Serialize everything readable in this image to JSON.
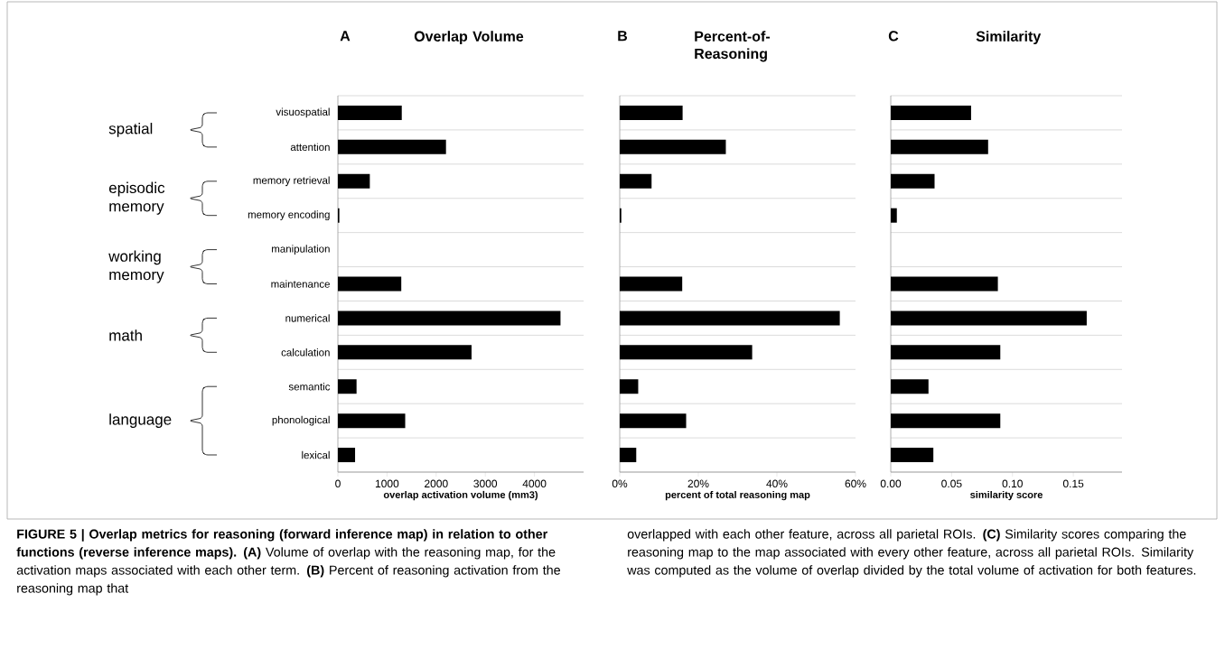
{
  "chart_data": [
    {
      "type": "bar",
      "orientation": "horizontal",
      "title": "Overlap Volume",
      "xlabel": "overlap activation volume (mm3)",
      "categories": [
        "visuospatial",
        "attention",
        "memory retrieval",
        "memory encoding",
        "manipulation",
        "maintenance",
        "numerical",
        "calculation",
        "semantic",
        "phonological",
        "lexical"
      ],
      "values": [
        1300,
        2200,
        650,
        30,
        0,
        1290,
        4530,
        2720,
        380,
        1370,
        350
      ],
      "color": "#000000",
      "xlim": [
        0,
        5000
      ],
      "xticks": [
        0,
        1000,
        2000,
        3000,
        4000
      ],
      "grid": "y",
      "annotations": [
        "A",
        "spatial",
        "episodic memory",
        "working memory",
        "math",
        "language",
        "**FIGURE 5 | Overlap metrics for reasoning (forward inference map) in relation to other functions (reverse inference maps). (A)** Volume of overlap with the reasoning map, for the activation maps associated with each other term. **(B)** Percent of reasoning activation from the reasoning map that",
        "overlapped with each other feature, across all parietal ROIs. **(C)** Similarity scores comparing the reasoning map to the map associated with every other feature, across all parietal ROIs. Similarity was computed as the volume of overlap divided by the total volume of activation for both features."
      ]
    },
    {
      "type": "bar",
      "orientation": "horizontal",
      "title": "Percent-of-Reasoning",
      "xlabel": "percent of total reasoning map",
      "categories": [
        null,
        null,
        null,
        null,
        null,
        null,
        null,
        null,
        null,
        null,
        null
      ],
      "values": [
        16,
        27,
        8.1,
        0.4,
        0,
        15.9,
        56,
        33.7,
        4.7,
        16.9,
        4.2
      ],
      "color": "#000000",
      "xlim": [
        0,
        60
      ],
      "xticks": [
        {
          "value": 0,
          "label": "0%"
        },
        {
          "value": 20,
          "label": "20%"
        },
        {
          "value": 40,
          "label": "40%"
        },
        {
          "value": 60,
          "label": "60%"
        }
      ],
      "grid": "y",
      "tick_labels": "x",
      "annotations": [
        "B"
      ]
    },
    {
      "type": "bar",
      "orientation": "horizontal",
      "title": "Similarity",
      "xlabel": "similarity score",
      "categories": [
        null,
        null,
        null,
        null,
        null,
        null,
        null,
        null,
        null,
        null,
        null
      ],
      "values": [
        0.066,
        0.08,
        0.036,
        0.005,
        0,
        0.088,
        0.161,
        0.09,
        0.031,
        0.09,
        0.035
      ],
      "color": "#000000",
      "xlim": [
        0,
        0.19
      ],
      "xticks": [
        {
          "value": 0,
          "label": "0.00"
        },
        {
          "value": 0.05,
          "label": "0.05"
        },
        {
          "value": 0.1,
          "label": "0.10"
        },
        {
          "value": 0.15,
          "label": "0.15"
        }
      ],
      "grid": "y",
      "tick_labels": "x",
      "annotations": [
        "C"
      ]
    }
  ]
}
